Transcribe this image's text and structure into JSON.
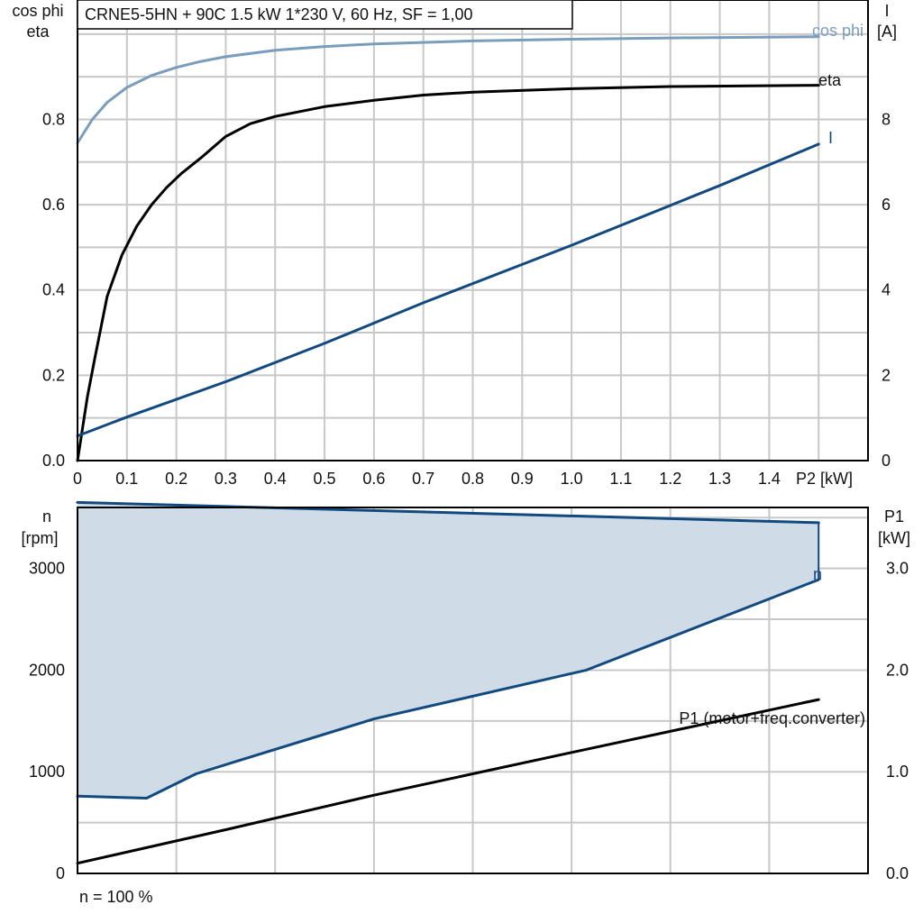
{
  "colors": {
    "cosphi": "#7a9cbd",
    "eta": "#000000",
    "current": "#124a7f",
    "speed": "#124a7f",
    "band_fill": "#cfdbe7",
    "band_edge": "#124a7f",
    "p1": "#000000",
    "grid": "#c8c8c8"
  },
  "chart_data": [
    {
      "type": "line",
      "title": "CRNE5-5HN + 90C   1.5 kW   1*230 V, 60 Hz, SF = 1,00",
      "xlabel": "P2 [kW]",
      "ylabel_left": [
        "cos phi",
        "eta"
      ],
      "ylabel_right": [
        "I",
        "[A]"
      ],
      "xlim": [
        0,
        1.6
      ],
      "ylim_left": [
        0,
        1.08
      ],
      "ylim_right": [
        0,
        10.8
      ],
      "xticks": [
        "0",
        "0.1",
        "0.2",
        "0.3",
        "0.4",
        "0.5",
        "0.6",
        "0.7",
        "0.8",
        "0.9",
        "1.0",
        "1.1",
        "1.2",
        "1.3",
        "1.4"
      ],
      "yticks_left": [
        "0.0",
        "0.2",
        "0.4",
        "0.6",
        "0.8"
      ],
      "yticks_right": [
        "0",
        "2",
        "4",
        "6",
        "8"
      ],
      "grid": true,
      "series": [
        {
          "name": "cos phi",
          "axis": "left",
          "x": [
            0,
            0.03,
            0.06,
            0.1,
            0.15,
            0.2,
            0.25,
            0.3,
            0.4,
            0.5,
            0.6,
            0.8,
            1.0,
            1.2,
            1.5
          ],
          "y": [
            0.745,
            0.8,
            0.84,
            0.875,
            0.903,
            0.922,
            0.936,
            0.947,
            0.962,
            0.971,
            0.977,
            0.984,
            0.988,
            0.991,
            0.994
          ]
        },
        {
          "name": "eta",
          "axis": "left",
          "x": [
            0,
            0.02,
            0.035,
            0.06,
            0.09,
            0.12,
            0.15,
            0.18,
            0.21,
            0.25,
            0.3,
            0.35,
            0.4,
            0.5,
            0.6,
            0.7,
            0.8,
            1.0,
            1.2,
            1.5
          ],
          "y": [
            0,
            0.15,
            0.24,
            0.385,
            0.482,
            0.55,
            0.6,
            0.64,
            0.673,
            0.71,
            0.76,
            0.79,
            0.807,
            0.83,
            0.845,
            0.857,
            0.864,
            0.872,
            0.877,
            0.88
          ]
        },
        {
          "name": "I",
          "axis": "right",
          "x": [
            0,
            0.1,
            0.3,
            0.5,
            0.7,
            1.0,
            1.3,
            1.5
          ],
          "y": [
            0.58,
            1.02,
            1.85,
            2.75,
            3.7,
            5.05,
            6.45,
            7.42
          ]
        }
      ],
      "annotations": [
        "cos phi",
        "eta",
        "I"
      ]
    },
    {
      "type": "area",
      "xlim": [
        0,
        1.6
      ],
      "ylabel_left": [
        "n",
        "[rpm]"
      ],
      "ylabel_right": [
        "P1",
        "[kW]"
      ],
      "ylim_left": [
        0,
        3600
      ],
      "ylim_right": [
        0,
        3.6
      ],
      "yticks_left": [
        "0",
        "1000",
        "2000",
        "3000"
      ],
      "yticks_right": [
        "0.0",
        "1.0",
        "2.0",
        "3.0"
      ],
      "grid": true,
      "series": [
        {
          "name": "n",
          "axis": "left",
          "x": [
            0,
            1.5
          ],
          "y": [
            3650,
            3450
          ]
        },
        {
          "name": "n min",
          "axis": "left",
          "x": [
            0,
            0.14,
            0.24,
            0.6,
            1.03,
            1.5
          ],
          "y": [
            760,
            740,
            980,
            1520,
            2000,
            2890
          ]
        },
        {
          "name": "P1 (motor+freq.converter)",
          "axis": "right",
          "x": [
            0,
            0.3,
            0.6,
            1.0,
            1.5
          ],
          "y": [
            0.1,
            0.43,
            0.77,
            1.19,
            1.71
          ]
        }
      ],
      "annotations": [
        "n",
        "P1 (motor+freq.converter)"
      ],
      "footnote": "n = 100 %"
    }
  ]
}
